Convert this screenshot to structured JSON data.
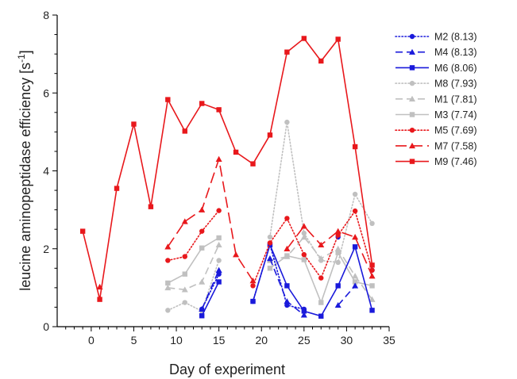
{
  "chart_data": {
    "type": "line",
    "xlabel": "Day of experiment",
    "ylabel_main": "leucine aminopeptidase efficiency [s",
    "ylabel_sup": "-1",
    "ylabel_close": "]",
    "xlim": [
      -4,
      35
    ],
    "ylim": [
      0,
      8
    ],
    "x_major_ticks": [
      0,
      5,
      10,
      15,
      20,
      25,
      30,
      35
    ],
    "x_tick_labels": [
      "0",
      "5",
      "10",
      "15",
      "20",
      "25",
      "30",
      "35"
    ],
    "y_major_ticks": [
      0,
      2,
      4,
      6,
      8
    ],
    "y_tick_labels": [
      "0",
      "2",
      "4",
      "6",
      "8"
    ],
    "grid": false,
    "legend_position": "right",
    "series": [
      {
        "name": "M2 (8.13)",
        "color": "#1a1adb",
        "dash": "dotted",
        "marker": "circle",
        "points": [
          [
            13,
            0.45
          ],
          [
            15,
            1.35
          ],
          [
            null,
            null
          ],
          [
            19,
            0.65
          ],
          [
            21,
            2.1
          ],
          [
            23,
            0.55
          ],
          [
            25,
            0.45
          ],
          [
            null,
            null
          ],
          [
            29,
            2.3
          ],
          [
            null,
            null
          ],
          [
            33,
            1.45
          ]
        ]
      },
      {
        "name": "M4 (8.13)",
        "color": "#1a1adb",
        "dash": "dashed",
        "marker": "triangle",
        "points": [
          [
            13,
            0.45
          ],
          [
            15,
            1.45
          ],
          [
            null,
            null
          ],
          [
            21,
            1.75
          ],
          [
            23,
            0.65
          ],
          [
            25,
            0.3
          ],
          [
            null,
            null
          ],
          [
            29,
            0.55
          ],
          [
            31,
            1.05
          ]
        ]
      },
      {
        "name": "M6 (8.06)",
        "color": "#1a1adb",
        "dash": "solid",
        "marker": "square",
        "points": [
          [
            13,
            0.28
          ],
          [
            15,
            1.15
          ],
          [
            null,
            null
          ],
          [
            19,
            0.65
          ],
          [
            21,
            2.1
          ],
          [
            23,
            1.05
          ],
          [
            25,
            0.4
          ],
          [
            27,
            0.27
          ],
          [
            29,
            1.05
          ],
          [
            31,
            2.05
          ],
          [
            33,
            0.42
          ]
        ]
      },
      {
        "name": "M8 (7.93)",
        "color": "#c0c0c0",
        "dash": "dotted",
        "marker": "circle",
        "points": [
          [
            9,
            0.42
          ],
          [
            11,
            0.62
          ],
          [
            13,
            0.4
          ],
          [
            15,
            1.7
          ],
          [
            null,
            null
          ],
          [
            21,
            2.3
          ],
          [
            23,
            5.25
          ],
          [
            25,
            2.4
          ],
          [
            27,
            1.7
          ],
          [
            29,
            1.65
          ],
          [
            31,
            3.4
          ],
          [
            33,
            2.65
          ]
        ]
      },
      {
        "name": "M1 (7.81)",
        "color": "#c0c0c0",
        "dash": "dashed",
        "marker": "triangle",
        "points": [
          [
            9,
            1.0
          ],
          [
            11,
            0.95
          ],
          [
            13,
            1.15
          ],
          [
            15,
            2.1
          ],
          [
            null,
            null
          ],
          [
            21,
            1.7
          ],
          [
            23,
            1.8
          ],
          [
            25,
            2.3
          ],
          [
            27,
            1.75
          ],
          [
            29,
            2.0
          ],
          [
            31,
            1.3
          ],
          [
            33,
            0.7
          ]
        ]
      },
      {
        "name": "M3 (7.74)",
        "color": "#c0c0c0",
        "dash": "solid",
        "marker": "square",
        "points": [
          [
            9,
            1.12
          ],
          [
            11,
            1.35
          ],
          [
            13,
            2.02
          ],
          [
            15,
            2.28
          ],
          [
            null,
            null
          ],
          [
            21,
            1.5
          ],
          [
            23,
            1.82
          ],
          [
            25,
            1.72
          ],
          [
            27,
            0.62
          ],
          [
            29,
            1.9
          ],
          [
            31,
            1.15
          ],
          [
            33,
            1.05
          ]
        ]
      },
      {
        "name": "M5 (7.69)",
        "color": "#e8181c",
        "dash": "dotted",
        "marker": "circle",
        "points": [
          [
            9,
            1.7
          ],
          [
            11,
            1.8
          ],
          [
            13,
            2.45
          ],
          [
            15,
            2.98
          ],
          [
            null,
            null
          ],
          [
            19,
            1.05
          ],
          [
            21,
            2.15
          ],
          [
            23,
            2.78
          ],
          [
            25,
            1.85
          ],
          [
            27,
            1.25
          ],
          [
            29,
            2.35
          ],
          [
            31,
            2.97
          ],
          [
            33,
            1.45
          ]
        ]
      },
      {
        "name": "M7 (7.58)",
        "color": "#e8181c",
        "dash": "longdash",
        "marker": "triangle",
        "points": [
          [
            1,
            1.02
          ],
          [
            null,
            null
          ],
          [
            9,
            2.05
          ],
          [
            11,
            2.7
          ],
          [
            13,
            3.0
          ],
          [
            15,
            4.3
          ],
          [
            17,
            1.85
          ],
          [
            19,
            1.18
          ],
          [
            null,
            null
          ],
          [
            23,
            2.0
          ],
          [
            25,
            2.58
          ],
          [
            27,
            2.1
          ],
          [
            29,
            2.45
          ],
          [
            31,
            2.3
          ],
          [
            33,
            1.3
          ]
        ]
      },
      {
        "name": "M9 (7.46)",
        "color": "#e8181c",
        "dash": "solid",
        "marker": "square",
        "points": [
          [
            -1,
            2.45
          ],
          [
            1,
            0.7
          ],
          [
            3,
            3.55
          ],
          [
            5,
            5.2
          ],
          [
            7,
            3.08
          ],
          [
            9,
            5.83
          ],
          [
            11,
            5.02
          ],
          [
            13,
            5.73
          ],
          [
            15,
            5.57
          ],
          [
            17,
            4.48
          ],
          [
            19,
            4.18
          ],
          [
            21,
            4.92
          ],
          [
            23,
            7.05
          ],
          [
            25,
            7.4
          ],
          [
            27,
            6.82
          ],
          [
            29,
            7.38
          ],
          [
            31,
            4.62
          ],
          [
            33,
            1.58
          ]
        ]
      }
    ]
  }
}
